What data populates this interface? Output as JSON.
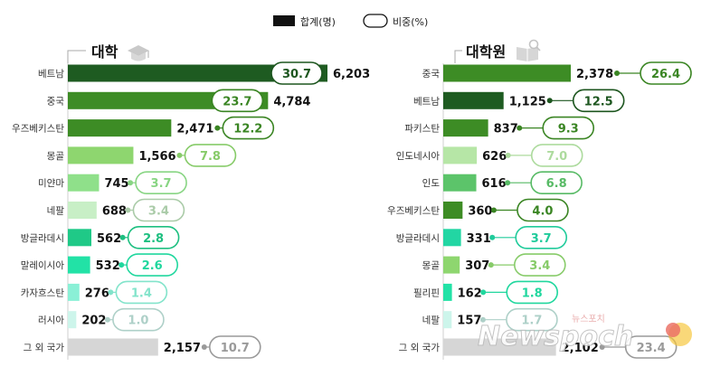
{
  "legend": {
    "total_label": "합계(명)",
    "share_label": "비중(%)"
  },
  "chart_data": [
    {
      "type": "bar",
      "title": "대학",
      "icon": "graduation-cap-icon",
      "categories": [
        "베트남",
        "중국",
        "우즈베키스탄",
        "몽골",
        "미얀마",
        "네팔",
        "방글라데시",
        "말레이시아",
        "카자흐스탄",
        "러시아",
        "그 외 국가"
      ],
      "values": [
        6203,
        4784,
        2471,
        1566,
        745,
        688,
        562,
        532,
        276,
        202,
        2157
      ],
      "value_labels": [
        "6,203",
        "4,784",
        "2,471",
        "1,566",
        "745",
        "688",
        "562",
        "532",
        "276",
        "202",
        "2,157"
      ],
      "shares": [
        "30.7",
        "23.7",
        "12.2",
        "7.8",
        "3.7",
        "3.4",
        "2.8",
        "2.6",
        "1.4",
        "1.0",
        "10.7"
      ],
      "colors": [
        "#1e5b21",
        "#3d8c25",
        "#3d8c25",
        "#8ed66f",
        "#8fe08a",
        "#c8efc6",
        "#1fc987",
        "#22e2a6",
        "#8af0d6",
        "#cdf5eb",
        "#d6d6d6"
      ],
      "xlim": [
        0,
        6203
      ]
    },
    {
      "type": "bar",
      "title": "대학원",
      "icon": "book-search-icon",
      "categories": [
        "중국",
        "베트남",
        "파키스탄",
        "인도네시아",
        "인도",
        "우즈베키스탄",
        "방글라데시",
        "몽골",
        "필리핀",
        "네팔",
        "그 외 국가"
      ],
      "values": [
        2378,
        1125,
        837,
        626,
        616,
        360,
        331,
        307,
        162,
        157,
        2102
      ],
      "value_labels": [
        "2,378",
        "1,125",
        "837",
        "626",
        "616",
        "360",
        "331",
        "307",
        "162",
        "157",
        "2,102"
      ],
      "shares": [
        "26.4",
        "12.5",
        "9.3",
        "7.0",
        "6.8",
        "4.0",
        "3.7",
        "3.4",
        "1.8",
        "1.7",
        "23.4"
      ],
      "colors": [
        "#3d8c25",
        "#1e5b21",
        "#3d8c25",
        "#b6e6a6",
        "#5cc46a",
        "#3d8c25",
        "#22d6a3",
        "#8ed66f",
        "#22e2a6",
        "#cdf5eb",
        "#d6d6d6"
      ],
      "xlim": [
        0,
        2378
      ]
    }
  ],
  "watermark": {
    "text": "Newspoch",
    "sub": "뉴스포치"
  }
}
